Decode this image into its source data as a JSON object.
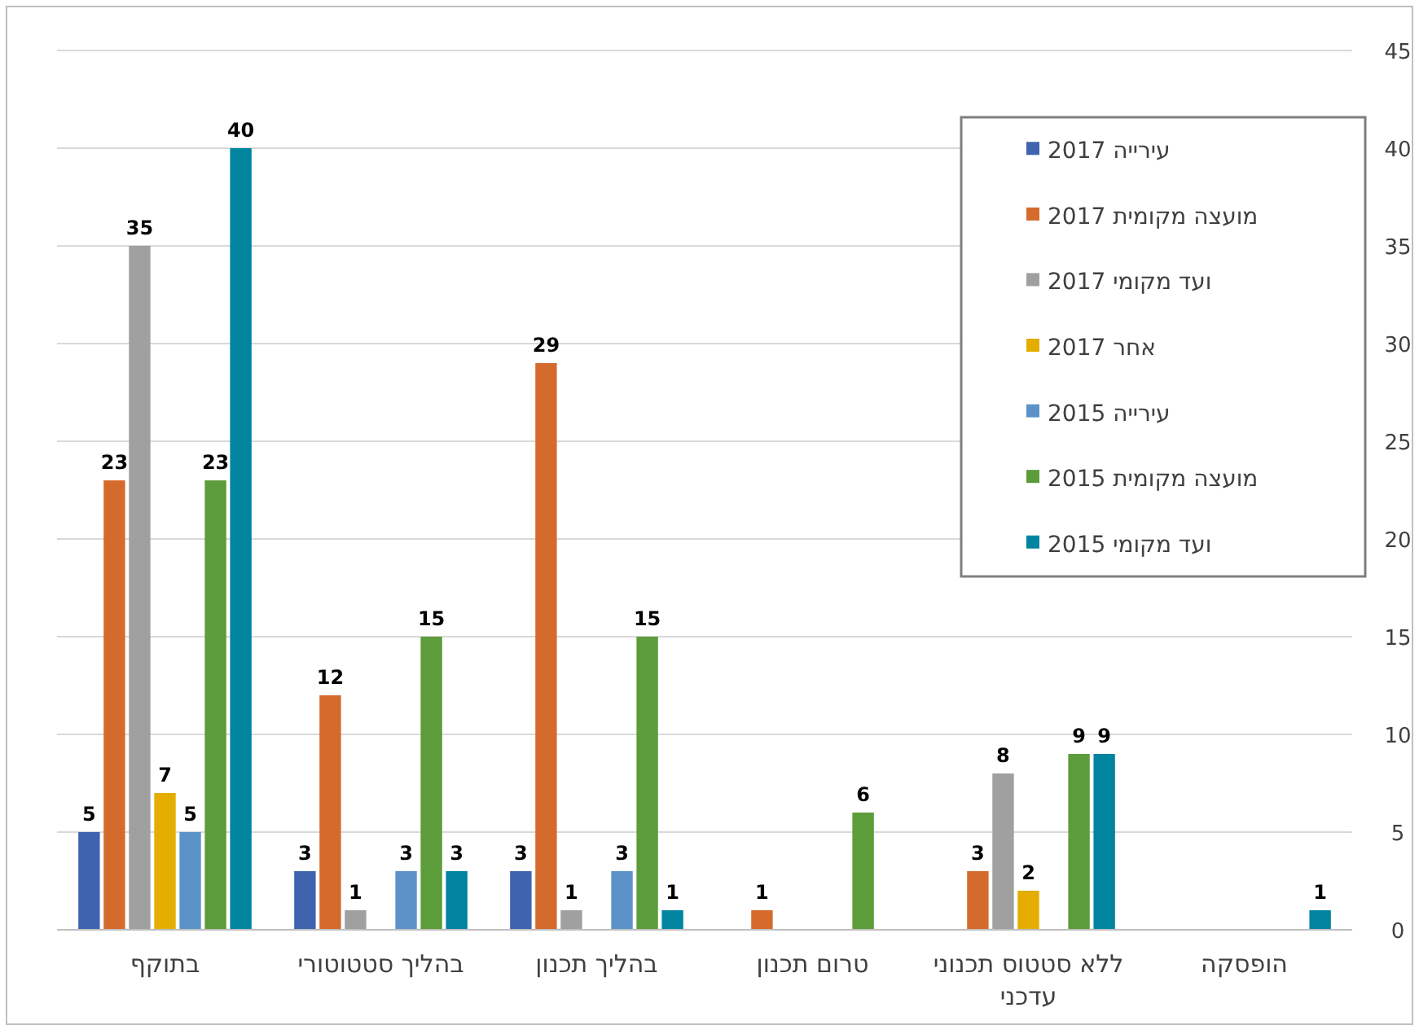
{
  "chart_data": {
    "type": "bar",
    "categories": [
      "בתוקף",
      "בהליך סטטוטורי",
      "בהליך תכנון",
      "טרום תכנון",
      "ללא סטטוס תכנוני עדכני",
      "הופסקה"
    ],
    "series": [
      {
        "name": "עירייה 2017",
        "color": "#3f63ad",
        "values": [
          5,
          3,
          3,
          null,
          null,
          null
        ]
      },
      {
        "name": "מועצה מקומית 2017",
        "color": "#d46b2c",
        "values": [
          23,
          12,
          29,
          1,
          3,
          null
        ]
      },
      {
        "name": "ועד מקומי 2017",
        "color": "#a0a0a0",
        "values": [
          35,
          1,
          1,
          null,
          8,
          null
        ]
      },
      {
        "name": "אחר 2017",
        "color": "#e5ad00",
        "values": [
          7,
          null,
          null,
          null,
          2,
          null
        ]
      },
      {
        "name": "עירייה 2015",
        "color": "#5b93c9",
        "values": [
          5,
          3,
          3,
          null,
          null,
          null
        ]
      },
      {
        "name": "מועצה מקומית 2015",
        "color": "#5d9c3a",
        "values": [
          23,
          15,
          15,
          6,
          9,
          null
        ]
      },
      {
        "name": "ועד מקומי 2015",
        "color": "#0084a0",
        "values": [
          40,
          3,
          1,
          null,
          9,
          1
        ]
      }
    ],
    "ylim": [
      0,
      45
    ],
    "yticks": [
      0,
      5,
      10,
      15,
      20,
      25,
      30,
      35,
      40,
      45
    ],
    "grid": "y",
    "legend": "top right",
    "data_labels": true
  }
}
